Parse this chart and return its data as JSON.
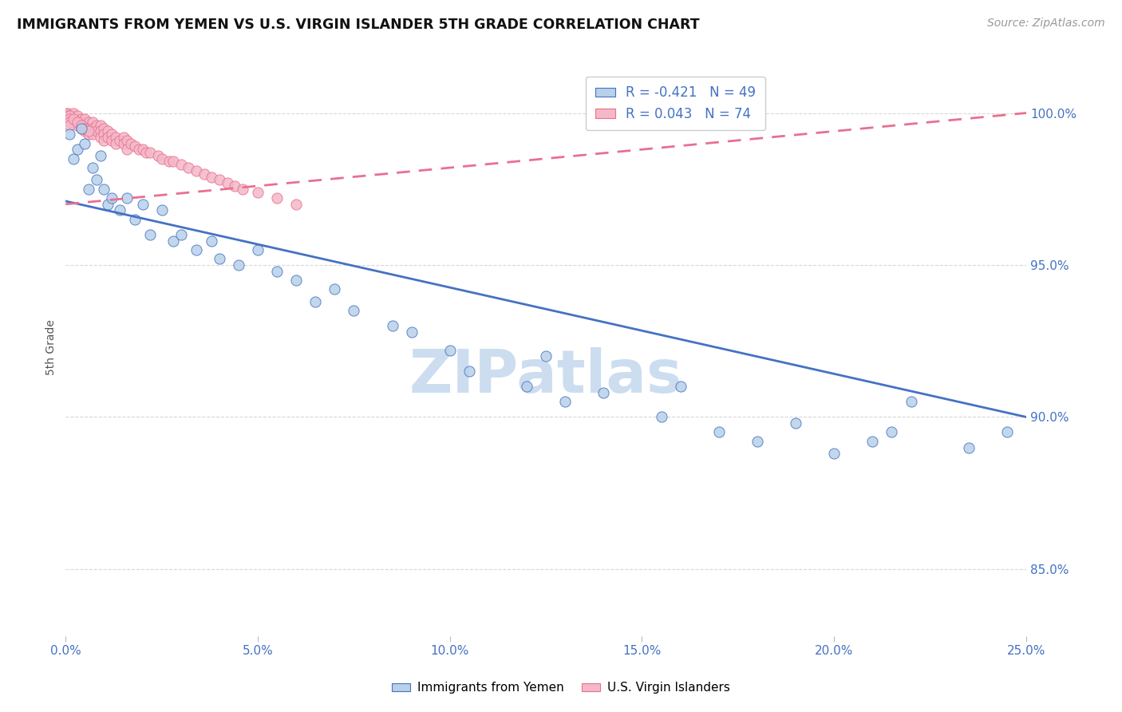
{
  "title": "IMMIGRANTS FROM YEMEN VS U.S. VIRGIN ISLANDER 5TH GRADE CORRELATION CHART",
  "source": "Source: ZipAtlas.com",
  "xlabel_vals": [
    0.0,
    0.05,
    0.1,
    0.15,
    0.2,
    0.25
  ],
  "ylabel_vals": [
    0.85,
    0.9,
    0.95,
    1.0
  ],
  "ylabel_label": "5th Grade",
  "xlim": [
    0.0,
    0.25
  ],
  "ylim": [
    0.828,
    1.018
  ],
  "legend_blue_r": "-0.421",
  "legend_blue_n": "49",
  "legend_pink_r": "0.043",
  "legend_pink_n": "74",
  "blue_scatter_x": [
    0.001,
    0.002,
    0.003,
    0.004,
    0.005,
    0.006,
    0.007,
    0.008,
    0.009,
    0.01,
    0.011,
    0.012,
    0.014,
    0.016,
    0.018,
    0.02,
    0.022,
    0.025,
    0.028,
    0.03,
    0.034,
    0.038,
    0.04,
    0.045,
    0.05,
    0.055,
    0.06,
    0.065,
    0.07,
    0.075,
    0.085,
    0.09,
    0.1,
    0.105,
    0.12,
    0.125,
    0.13,
    0.14,
    0.155,
    0.16,
    0.17,
    0.18,
    0.19,
    0.2,
    0.21,
    0.215,
    0.22,
    0.235,
    0.245
  ],
  "blue_scatter_y": [
    0.993,
    0.985,
    0.988,
    0.995,
    0.99,
    0.975,
    0.982,
    0.978,
    0.986,
    0.975,
    0.97,
    0.972,
    0.968,
    0.972,
    0.965,
    0.97,
    0.96,
    0.968,
    0.958,
    0.96,
    0.955,
    0.958,
    0.952,
    0.95,
    0.955,
    0.948,
    0.945,
    0.938,
    0.942,
    0.935,
    0.93,
    0.928,
    0.922,
    0.915,
    0.91,
    0.92,
    0.905,
    0.908,
    0.9,
    0.91,
    0.895,
    0.892,
    0.898,
    0.888,
    0.892,
    0.895,
    0.905,
    0.89,
    0.895
  ],
  "pink_scatter_x": [
    0.0005,
    0.001,
    0.001,
    0.0015,
    0.002,
    0.002,
    0.002,
    0.003,
    0.003,
    0.003,
    0.004,
    0.004,
    0.004,
    0.005,
    0.005,
    0.005,
    0.006,
    0.006,
    0.006,
    0.007,
    0.007,
    0.007,
    0.008,
    0.008,
    0.009,
    0.009,
    0.009,
    0.01,
    0.01,
    0.01,
    0.011,
    0.011,
    0.012,
    0.012,
    0.013,
    0.013,
    0.014,
    0.015,
    0.015,
    0.016,
    0.016,
    0.017,
    0.018,
    0.019,
    0.02,
    0.021,
    0.022,
    0.024,
    0.025,
    0.027,
    0.028,
    0.03,
    0.032,
    0.034,
    0.036,
    0.038,
    0.04,
    0.042,
    0.044,
    0.046,
    0.05,
    0.055,
    0.06,
    0.0,
    0.0,
    0.001,
    0.001,
    0.001,
    0.001,
    0.002,
    0.003,
    0.004,
    0.005,
    0.006
  ],
  "pink_scatter_y": [
    1.0,
    0.999,
    0.998,
    0.999,
    1.0,
    0.998,
    0.997,
    0.999,
    0.997,
    0.996,
    0.998,
    0.997,
    0.995,
    0.998,
    0.996,
    0.994,
    0.997,
    0.995,
    0.993,
    0.997,
    0.995,
    0.993,
    0.996,
    0.994,
    0.996,
    0.994,
    0.992,
    0.995,
    0.993,
    0.991,
    0.994,
    0.992,
    0.993,
    0.991,
    0.992,
    0.99,
    0.991,
    0.992,
    0.99,
    0.991,
    0.988,
    0.99,
    0.989,
    0.988,
    0.988,
    0.987,
    0.987,
    0.986,
    0.985,
    0.984,
    0.984,
    0.983,
    0.982,
    0.981,
    0.98,
    0.979,
    0.978,
    0.977,
    0.976,
    0.975,
    0.974,
    0.972,
    0.97,
    1.0,
    0.999,
    0.999,
    0.998,
    0.997,
    0.996,
    0.998,
    0.997,
    0.996,
    0.995,
    0.994
  ],
  "blue_trendline": [
    [
      0.0,
      0.971
    ],
    [
      0.25,
      0.9
    ]
  ],
  "pink_trendline": [
    [
      0.0,
      0.97
    ],
    [
      0.25,
      1.0
    ]
  ],
  "blue_color": "#b8d0e8",
  "pink_color": "#f4b8c8",
  "blue_line_color": "#4472c4",
  "pink_line_color": "#e87090",
  "watermark": "ZIPatlas",
  "watermark_color": "#ccddf0",
  "background_color": "#ffffff",
  "grid_color": "#d8d8d8"
}
